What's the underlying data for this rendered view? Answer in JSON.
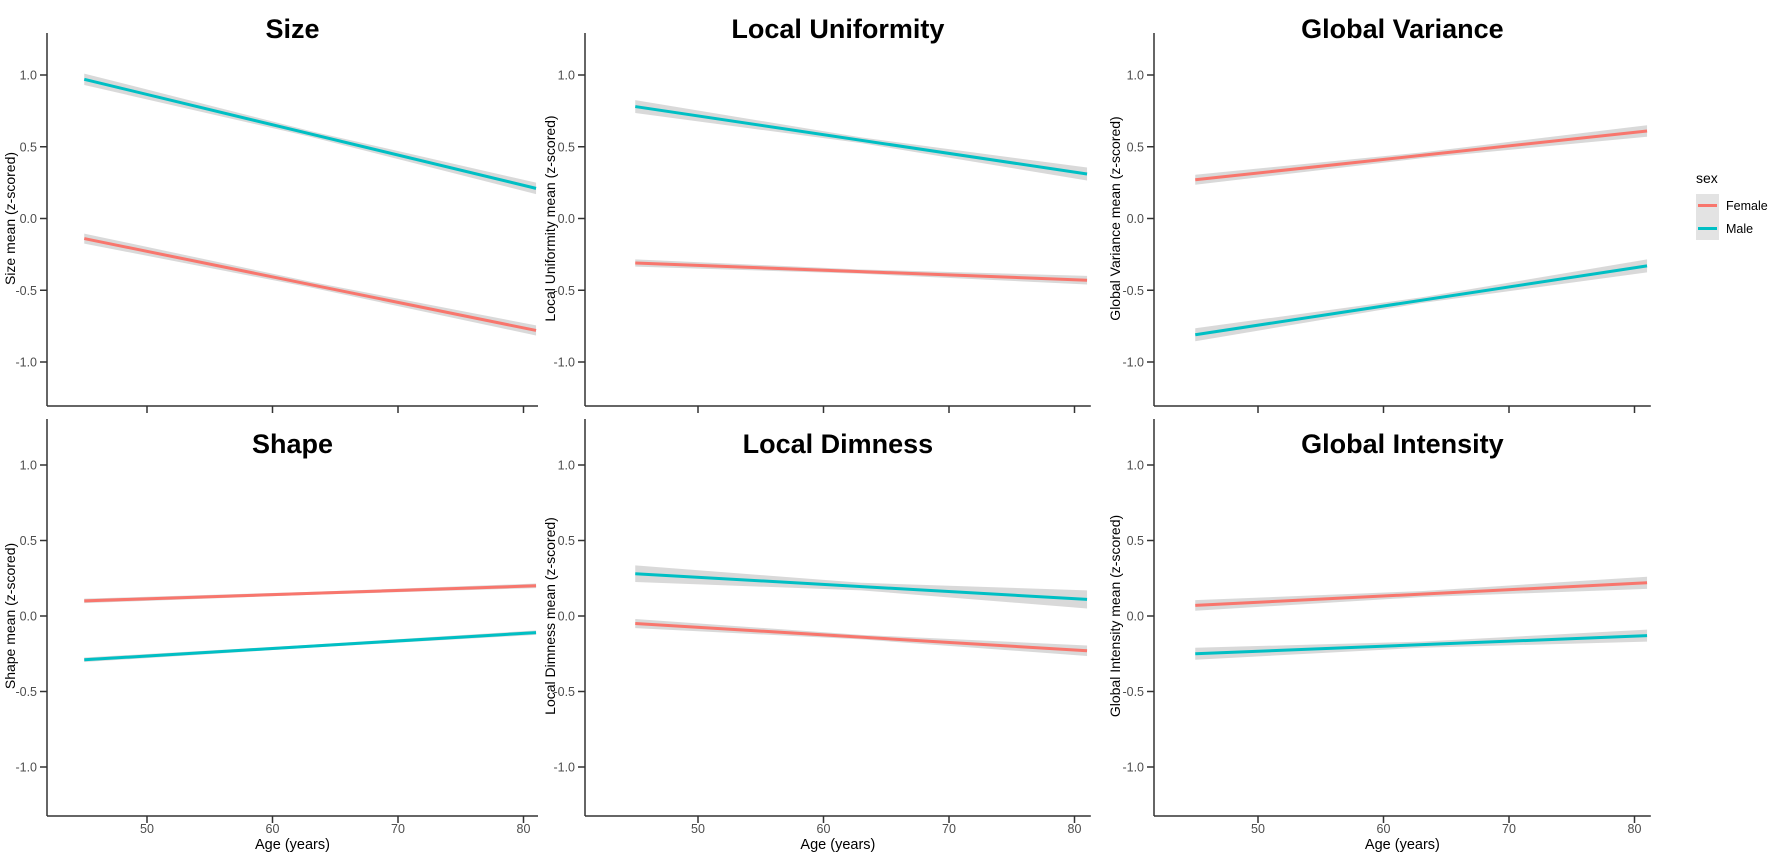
{
  "figure": {
    "kind": "faceted-trend-lines",
    "background": "#ffffff",
    "axis_color": "#333333",
    "tick_label_color": "#4d4d4d",
    "ribbon_color": "#cfcfcf"
  },
  "legend": {
    "title": "sex",
    "items": [
      {
        "label": "Female",
        "color": "#F8766D"
      },
      {
        "label": "Male",
        "color": "#00BFC4"
      }
    ]
  },
  "axes": {
    "x_label": "Age (years)",
    "x_ticks": [
      "50",
      "60",
      "70",
      "80"
    ],
    "x_tick_values": [
      50,
      60,
      70,
      80
    ],
    "y_ticks": [
      "1.0",
      "0.5",
      "0.0",
      "-0.5",
      "-1.0"
    ],
    "y_tick_values": [
      1.0,
      0.5,
      0.0,
      -0.5,
      -1.0
    ],
    "x_data_range": [
      45,
      81
    ],
    "y_visible_range": [
      -1.3,
      1.3
    ]
  },
  "chart_data": [
    {
      "type": "line",
      "title": "Size",
      "xlabel": "Age (years)",
      "ylabel": "Size mean (z-scored)",
      "x": [
        45,
        81
      ],
      "xlim": [
        43.5,
        82.5
      ],
      "ylim": [
        -1.3,
        1.3
      ],
      "legend_position": "right",
      "grid": false,
      "series": [
        {
          "name": "Male",
          "color": "#00BFC4",
          "values": [
            0.97,
            0.21
          ],
          "ci_halfwidth": [
            0.04,
            0.02,
            0.04
          ]
        },
        {
          "name": "Female",
          "color": "#F8766D",
          "values": [
            -0.14,
            -0.78
          ],
          "ci_halfwidth": [
            0.035,
            0.02,
            0.035
          ]
        }
      ]
    },
    {
      "type": "line",
      "title": "Local Uniformity",
      "xlabel": "Age (years)",
      "ylabel": "Local Uniformity mean (z-scored)",
      "x": [
        45,
        81
      ],
      "xlim": [
        43.5,
        82.5
      ],
      "ylim": [
        -1.3,
        1.3
      ],
      "series": [
        {
          "name": "Male",
          "color": "#00BFC4",
          "values": [
            0.78,
            0.31
          ],
          "ci_halfwidth": [
            0.045,
            0.02,
            0.045
          ]
        },
        {
          "name": "Female",
          "color": "#F8766D",
          "values": [
            -0.31,
            -0.43
          ],
          "ci_halfwidth": [
            0.025,
            0.015,
            0.03
          ]
        }
      ]
    },
    {
      "type": "line",
      "title": "Global Variance",
      "xlabel": "Age (years)",
      "ylabel": "Global Variance mean (z-scored)",
      "x": [
        45,
        81
      ],
      "xlim": [
        43.5,
        82.5
      ],
      "ylim": [
        -1.3,
        1.3
      ],
      "series": [
        {
          "name": "Female",
          "color": "#F8766D",
          "values": [
            0.27,
            0.61
          ],
          "ci_halfwidth": [
            0.035,
            0.02,
            0.04
          ]
        },
        {
          "name": "Male",
          "color": "#00BFC4",
          "values": [
            -0.81,
            -0.33
          ],
          "ci_halfwidth": [
            0.045,
            0.02,
            0.045
          ]
        }
      ]
    },
    {
      "type": "line",
      "title": "Shape",
      "xlabel": "Age (years)",
      "ylabel": "Shape mean (z-scored)",
      "x": [
        45,
        81
      ],
      "xlim": [
        43.5,
        82.5
      ],
      "ylim": [
        -1.3,
        1.3
      ],
      "series": [
        {
          "name": "Female",
          "color": "#F8766D",
          "values": [
            0.1,
            0.2
          ],
          "ci_halfwidth": [
            0.015,
            0.01,
            0.015
          ]
        },
        {
          "name": "Male",
          "color": "#00BFC4",
          "values": [
            -0.29,
            -0.11
          ],
          "ci_halfwidth": [
            0.015,
            0.01,
            0.015
          ]
        }
      ]
    },
    {
      "type": "line",
      "title": "Local Dimness",
      "xlabel": "Age (years)",
      "ylabel": "Local Dimness mean (z-scored)",
      "x": [
        45,
        81
      ],
      "xlim": [
        43.5,
        82.5
      ],
      "ylim": [
        -1.3,
        1.3
      ],
      "series": [
        {
          "name": "Male",
          "color": "#00BFC4",
          "values": [
            0.28,
            0.11
          ],
          "ci_halfwidth": [
            0.055,
            0.025,
            0.06
          ]
        },
        {
          "name": "Female",
          "color": "#F8766D",
          "values": [
            -0.05,
            -0.23
          ],
          "ci_halfwidth": [
            0.03,
            0.015,
            0.035
          ]
        }
      ]
    },
    {
      "type": "line",
      "title": "Global Intensity",
      "xlabel": "Age (years)",
      "ylabel": "Global Intensity mean (z-scored)",
      "x": [
        45,
        81
      ],
      "xlim": [
        43.5,
        82.5
      ],
      "ylim": [
        -1.3,
        1.3
      ],
      "series": [
        {
          "name": "Female",
          "color": "#F8766D",
          "values": [
            0.07,
            0.22
          ],
          "ci_halfwidth": [
            0.035,
            0.02,
            0.04
          ]
        },
        {
          "name": "Male",
          "color": "#00BFC4",
          "values": [
            -0.25,
            -0.13
          ],
          "ci_halfwidth": [
            0.04,
            0.02,
            0.04
          ]
        }
      ]
    }
  ]
}
